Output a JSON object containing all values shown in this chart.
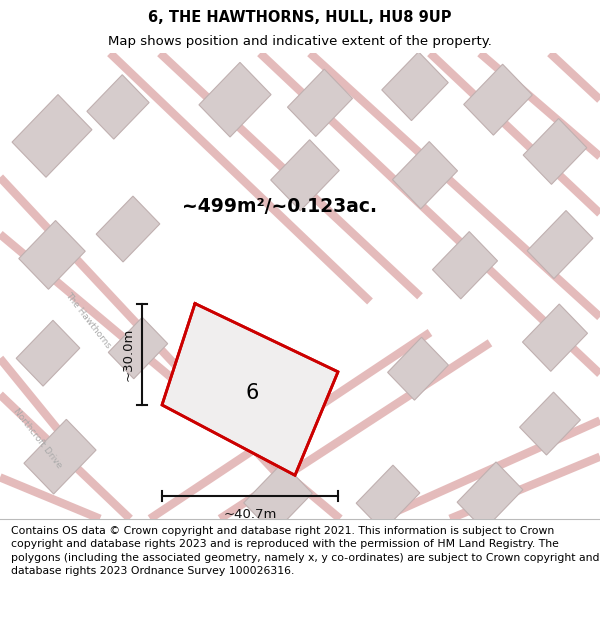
{
  "title": "6, THE HAWTHORNS, HULL, HU8 9UP",
  "subtitle": "Map shows position and indicative extent of the property.",
  "title_fontsize": 10.5,
  "subtitle_fontsize": 9.5,
  "area_text": "~499m²/~0.123ac.",
  "width_label": "~40.7m",
  "height_label": "~30.0m",
  "property_number": "6",
  "map_bg": "#ebebeb",
  "footer_text": "Contains OS data © Crown copyright and database right 2021. This information is subject to Crown copyright and database rights 2023 and is reproduced with the permission of HM Land Registry. The polygons (including the associated geometry, namely x, y co-ordinates) are subject to Crown copyright and database rights 2023 Ordnance Survey 100026316.",
  "footer_fontsize": 7.8,
  "road_color": "#e0b0b0",
  "road_lw": 6,
  "building_fill": "#d6cccc",
  "building_outline": "#c0b0b0",
  "prop_fill": "#f0eeee",
  "prop_edge": "#cc0000",
  "prop_lw": 2.0,
  "street_color": "#aaaaaa",
  "dim_color": "#111111"
}
